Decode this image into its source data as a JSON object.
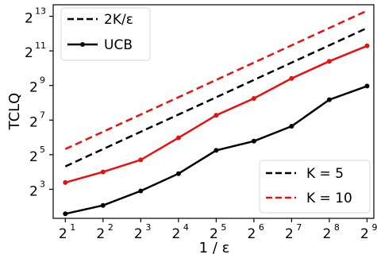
{
  "chart_data": {
    "type": "line",
    "xlabel": "1 / ε",
    "ylabel": "TCLQ",
    "x_scale": "log2",
    "y_scale": "log2",
    "x": [
      2,
      4,
      8,
      16,
      32,
      64,
      128,
      256,
      512
    ],
    "xlim": [
      1.6,
      580
    ],
    "ylim": [
      2.5,
      13000
    ],
    "x_ticks": [
      {
        "value": 2,
        "base": "2",
        "exp": "1"
      },
      {
        "value": 4,
        "base": "2",
        "exp": "2"
      },
      {
        "value": 8,
        "base": "2",
        "exp": "3"
      },
      {
        "value": 16,
        "base": "2",
        "exp": "4"
      },
      {
        "value": 32,
        "base": "2",
        "exp": "5"
      },
      {
        "value": 64,
        "base": "2",
        "exp": "6"
      },
      {
        "value": 128,
        "base": "2",
        "exp": "7"
      },
      {
        "value": 256,
        "base": "2",
        "exp": "8"
      },
      {
        "value": 512,
        "base": "2",
        "exp": "9"
      }
    ],
    "y_ticks": [
      {
        "value": 8,
        "base": "2",
        "exp": "3"
      },
      {
        "value": 32,
        "base": "2",
        "exp": "5"
      },
      {
        "value": 128,
        "base": "2",
        "exp": "7"
      },
      {
        "value": 512,
        "base": "2",
        "exp": "9"
      },
      {
        "value": 2048,
        "base": "2",
        "exp": "11"
      },
      {
        "value": 8192,
        "base": "2",
        "exp": "13"
      }
    ],
    "series": [
      {
        "legend": "K = 5",
        "method": "2K/ε",
        "color": "#000000",
        "style": "dashed",
        "marker": false,
        "values": [
          20,
          40,
          80,
          160,
          320,
          640,
          1280,
          2560,
          5120
        ]
      },
      {
        "legend": "K = 10",
        "method": "2K/ε",
        "color": "#e8100f",
        "style": "dashed",
        "marker": false,
        "values": [
          40,
          80,
          160,
          320,
          640,
          1280,
          2560,
          5120,
          10240
        ]
      },
      {
        "legend": "K = 5",
        "method": "UCB",
        "color": "#000000",
        "style": "solid",
        "marker": true,
        "values": [
          3.0,
          4.2,
          7.5,
          15,
          38,
          55,
          100,
          290,
          500
        ]
      },
      {
        "legend": "K = 10",
        "method": "UCB",
        "color": "#e8100f",
        "style": "solid",
        "marker": true,
        "values": [
          10.5,
          16,
          26,
          63,
          155,
          305,
          680,
          1350,
          2500
        ]
      }
    ],
    "legend_methods": {
      "placement": "top-left",
      "entries": [
        {
          "label": "2K/ε",
          "style": "dashed",
          "color": "#000000"
        },
        {
          "label": "UCB",
          "style": "solid-marker",
          "color": "#000000"
        }
      ]
    },
    "legend_k": {
      "placement": "bottom-right",
      "entries": [
        {
          "label": "K = 5",
          "style": "dashed",
          "color": "#000000"
        },
        {
          "label": "K = 10",
          "style": "dashed",
          "color": "#e8100f"
        }
      ]
    }
  }
}
